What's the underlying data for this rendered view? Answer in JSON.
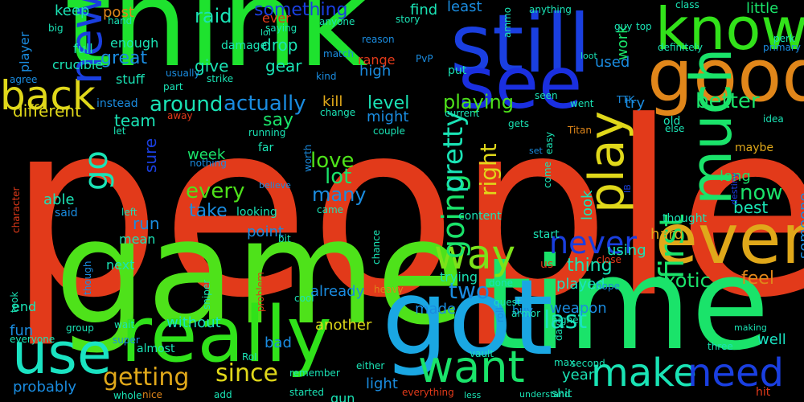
{
  "background": "#000000",
  "words": [
    {
      "text": "people",
      "color": "#e23a1a",
      "rot": false
    },
    {
      "text": "game",
      "color": "#4ee21a",
      "rot": false
    },
    {
      "text": "time",
      "color": "#1ae36a",
      "rot": false
    },
    {
      "text": "think",
      "color": "#1ee22e",
      "rot": false
    },
    {
      "text": "got",
      "color": "#1aa7e3",
      "rot": false
    },
    {
      "text": "still",
      "color": "#1a3fe0",
      "rot": false
    },
    {
      "text": "really",
      "color": "#30e21a",
      "rot": false
    },
    {
      "text": "good",
      "color": "#e0861a",
      "rot": false
    },
    {
      "text": "know",
      "color": "#32e21a",
      "rot": false
    },
    {
      "text": "see",
      "color": "#1a2fe0",
      "rot": false
    },
    {
      "text": "even",
      "color": "#e0a81a",
      "rot": false
    },
    {
      "text": "use",
      "color": "#1ae3c2",
      "rot": false
    },
    {
      "text": "want",
      "color": "#1ae36a",
      "rot": false
    },
    {
      "text": "make",
      "color": "#1ae3b5",
      "rot": false
    },
    {
      "text": "need",
      "color": "#1a3fe0",
      "rot": false
    },
    {
      "text": "much",
      "color": "#1ae36a",
      "rot": true
    },
    {
      "text": "play",
      "color": "#e0d81a",
      "rot": true
    },
    {
      "text": "way",
      "color": "#7ce21a",
      "rot": false
    },
    {
      "text": "back",
      "color": "#e0d81a",
      "rot": false
    },
    {
      "text": "new",
      "color": "#1a3fe0",
      "rot": true
    },
    {
      "text": "go",
      "color": "#1ae3b5",
      "rot": true
    },
    {
      "text": "first",
      "color": "#1ae36a",
      "rot": true
    },
    {
      "text": "never",
      "color": "#1a3fe0",
      "rot": false
    },
    {
      "text": "going",
      "color": "#1ae36a",
      "rot": true
    },
    {
      "text": "pretty",
      "color": "#1ae3b5",
      "rot": true
    },
    {
      "text": "getting",
      "color": "#e0a81a",
      "rot": false
    },
    {
      "text": "since",
      "color": "#e0d81a",
      "rot": false
    },
    {
      "text": "last",
      "color": "#1ae3c2",
      "rot": false
    },
    {
      "text": "every",
      "color": "#4ee21a",
      "rot": false
    },
    {
      "text": "actually",
      "color": "#1a8ce0",
      "rot": false
    },
    {
      "text": "around",
      "color": "#1ae3b5",
      "rot": false
    },
    {
      "text": "better",
      "color": "#1ae36a",
      "rot": false
    },
    {
      "text": "exotic",
      "color": "#1ae36a",
      "rot": false
    },
    {
      "text": "many",
      "color": "#1a8ce0",
      "rot": false
    },
    {
      "text": "love",
      "color": "#4ee21a",
      "rot": false
    },
    {
      "text": "thing",
      "color": "#1ae3b5",
      "rot": false
    },
    {
      "text": "now",
      "color": "#1ae36a",
      "rot": false
    },
    {
      "text": "lot",
      "color": "#1ae36a",
      "rot": false
    },
    {
      "text": "two",
      "color": "#1a8ce0",
      "rot": false
    },
    {
      "text": "take",
      "color": "#1a8ce0",
      "rot": false
    },
    {
      "text": "feel",
      "color": "#e0861a",
      "rot": false
    },
    {
      "text": "right",
      "color": "#e0d81a",
      "rot": true
    },
    {
      "text": "playing",
      "color": "#4ee21a",
      "rot": false
    },
    {
      "text": "raid",
      "color": "#1ae3b5",
      "rot": false
    },
    {
      "text": "something",
      "color": "#1a3fe0",
      "rot": false
    },
    {
      "text": "level",
      "color": "#1ae3b5",
      "rot": false
    },
    {
      "text": "say",
      "color": "#1ae36a",
      "rot": false
    },
    {
      "text": "team",
      "color": "#1ae3b5",
      "rot": false
    },
    {
      "text": "gear",
      "color": "#1ae3b5",
      "rot": false
    },
    {
      "text": "drop",
      "color": "#1ae3b5",
      "rot": false
    },
    {
      "text": "give",
      "color": "#1ae3b5",
      "rot": false
    },
    {
      "text": "great",
      "color": "#1a8ce0",
      "rot": false
    },
    {
      "text": "different",
      "color": "#e0d81a",
      "rot": false
    },
    {
      "text": "kill",
      "color": "#e0a81a",
      "rot": false
    },
    {
      "text": "run",
      "color": "#1a8ce0",
      "rot": false
    },
    {
      "text": "sure",
      "color": "#1a3fe0",
      "rot": true
    },
    {
      "text": "week",
      "color": "#1ae36a",
      "rot": false
    },
    {
      "text": "point",
      "color": "#1a8ce0",
      "rot": false
    },
    {
      "text": "able",
      "color": "#1ae3b5",
      "rot": false
    },
    {
      "text": "best",
      "color": "#1ae3b5",
      "rot": false
    },
    {
      "text": "look",
      "color": "#1ae3b5",
      "rot": true
    },
    {
      "text": "using",
      "color": "#1ae3b5",
      "rot": false
    },
    {
      "text": "hard",
      "color": "#e0a81a",
      "rot": false
    },
    {
      "text": "played",
      "color": "#1ae3c2",
      "rot": false
    },
    {
      "text": "already",
      "color": "#1a8ce0",
      "rot": false
    },
    {
      "text": "made",
      "color": "#1a8ce0",
      "rot": false
    },
    {
      "text": "weapon",
      "color": "#1a8ce0",
      "rot": false
    },
    {
      "text": "year",
      "color": "#1ae3b5",
      "rot": false
    },
    {
      "text": "well",
      "color": "#1ae3c2",
      "rot": false
    },
    {
      "text": "bad",
      "color": "#1a8ce0",
      "rot": false
    },
    {
      "text": "light",
      "color": "#1a8ce0",
      "rot": false
    },
    {
      "text": "another",
      "color": "#e0d81a",
      "rot": false
    },
    {
      "text": "without",
      "color": "#1ae3c2",
      "rot": false
    },
    {
      "text": "fun",
      "color": "#1a8ce0",
      "rot": false
    },
    {
      "text": "probably",
      "color": "#1a8ce0",
      "rot": false
    },
    {
      "text": "long",
      "color": "#1ae36a",
      "rot": false
    },
    {
      "text": "someone",
      "color": "#1a8ce0",
      "rot": true
    },
    {
      "text": "try",
      "color": "#1a8ce0",
      "rot": false
    },
    {
      "text": "used",
      "color": "#1a8ce0",
      "rot": false
    },
    {
      "text": "work",
      "color": "#1ae36a",
      "rot": true
    },
    {
      "text": "little",
      "color": "#1ae36a",
      "rot": false
    },
    {
      "text": "find",
      "color": "#1ae3b5",
      "rot": false
    },
    {
      "text": "least",
      "color": "#1a8ce0",
      "rot": false
    },
    {
      "text": "keep",
      "color": "#1ae3b5",
      "rot": false
    },
    {
      "text": "post",
      "color": "#e0861a",
      "rot": false
    },
    {
      "text": "ever",
      "color": "#e23a1a",
      "rot": false
    },
    {
      "text": "might",
      "color": "#1a8ce0",
      "rot": false
    },
    {
      "text": "gun",
      "color": "#1ae3b5",
      "rot": false
    },
    {
      "text": "trying",
      "color": "#1ae3b5",
      "rot": false
    },
    {
      "text": "full",
      "color": "#1ae3b5",
      "rot": false
    },
    {
      "text": "enough",
      "color": "#1ae3b5",
      "rot": false
    },
    {
      "text": "stuff",
      "color": "#1ae3b5",
      "rot": false
    },
    {
      "text": "player",
      "color": "#1a8ce0",
      "rot": true
    },
    {
      "text": "range",
      "color": "#e23a1a",
      "rot": false
    },
    {
      "text": "crucible",
      "color": "#1ae3b5",
      "rot": false
    },
    {
      "text": "next",
      "color": "#1ae3b5",
      "rot": false
    },
    {
      "text": "mean",
      "color": "#1ae3b5",
      "rot": false
    },
    {
      "text": "said",
      "color": "#1a8ce0",
      "rot": false
    },
    {
      "text": "end",
      "color": "#1ae3b5",
      "rot": false
    },
    {
      "text": "thought",
      "color": "#1ae3b5",
      "rot": false
    },
    {
      "text": "old",
      "color": "#1ae3b5",
      "rot": false
    },
    {
      "text": "us",
      "color": "#e23a1a",
      "rot": false
    },
    {
      "text": "high",
      "color": "#1a8ce0",
      "rot": false
    },
    {
      "text": "put",
      "color": "#1ae3b5",
      "rot": false
    },
    {
      "text": "far",
      "color": "#1ae3b5",
      "rot": false
    },
    {
      "text": "maybe",
      "color": "#e0a81a",
      "rot": false
    },
    {
      "text": "buy",
      "color": "#1a8ce0",
      "rot": false
    },
    {
      "text": "content",
      "color": "#1ae3b5",
      "rot": false
    },
    {
      "text": "looking",
      "color": "#1ae3b5",
      "rot": false
    },
    {
      "text": "start",
      "color": "#1ae3b5",
      "rot": false
    },
    {
      "text": "shit",
      "color": "#1ae3b5",
      "rot": false
    },
    {
      "text": "hit",
      "color": "#e23a1a",
      "rot": false
    },
    {
      "text": "almost",
      "color": "#1ae3b5",
      "rot": false
    },
    {
      "text": "damage",
      "color": "#1ae3b5",
      "rot": false
    },
    {
      "text": "instead",
      "color": "#1a8ce0",
      "rot": false
    },
    {
      "text": "agree",
      "color": "#1a8ce0",
      "rot": false
    },
    {
      "text": "usually",
      "color": "#1a8ce0",
      "rot": false
    },
    {
      "text": "strike",
      "color": "#1ae3b5",
      "rot": false
    },
    {
      "text": "anyone",
      "color": "#1ae3b5",
      "rot": false
    },
    {
      "text": "saying",
      "color": "#1ae3b5",
      "rot": false
    },
    {
      "text": "hand",
      "color": "#1ae3b5",
      "rot": false
    },
    {
      "text": "big",
      "color": "#1ae3b5",
      "rot": false
    },
    {
      "text": "reason",
      "color": "#1a8ce0",
      "rot": false
    },
    {
      "text": "story",
      "color": "#1ae3b5",
      "rot": false
    },
    {
      "text": "anything",
      "color": "#1ae3b5",
      "rot": false
    },
    {
      "text": "class",
      "color": "#1ae3b5",
      "rot": false
    },
    {
      "text": "perk",
      "color": "#1ae3b5",
      "rot": false
    },
    {
      "text": "primary",
      "color": "#1a8ce0",
      "rot": false
    },
    {
      "text": "definitely",
      "color": "#1ae3b5",
      "rot": false
    },
    {
      "text": "top",
      "color": "#1ae3b5",
      "rot": false
    },
    {
      "text": "guy",
      "color": "#1ae3b5",
      "rot": false
    },
    {
      "text": "loot",
      "color": "#1ae3b5",
      "rot": false
    },
    {
      "text": "ammo",
      "color": "#1ae3b5",
      "rot": true
    },
    {
      "text": "PvP",
      "color": "#1a8ce0",
      "rot": false
    },
    {
      "text": "match",
      "color": "#1a8ce0",
      "rot": false
    },
    {
      "text": "kind",
      "color": "#1a8ce0",
      "rot": false
    },
    {
      "text": "part",
      "color": "#1ae3b5",
      "rot": false
    },
    {
      "text": "away",
      "color": "#e23a1a",
      "rot": false
    },
    {
      "text": "let",
      "color": "#1ae3b5",
      "rot": false
    },
    {
      "text": "running",
      "color": "#1ae3b5",
      "rot": false
    },
    {
      "text": "nothing",
      "color": "#1a8ce0",
      "rot": false
    },
    {
      "text": "believe",
      "color": "#1a8ce0",
      "rot": false
    },
    {
      "text": "worth",
      "color": "#1a8ce0",
      "rot": true
    },
    {
      "text": "came",
      "color": "#1ae3b5",
      "rot": false
    },
    {
      "text": "change",
      "color": "#1ae3b5",
      "rot": false
    },
    {
      "text": "couple",
      "color": "#1ae3b5",
      "rot": false
    },
    {
      "text": "current",
      "color": "#1ae3b5",
      "rot": false
    },
    {
      "text": "seen",
      "color": "#1ae3b5",
      "rot": false
    },
    {
      "text": "gets",
      "color": "#1ae3b5",
      "rot": false
    },
    {
      "text": "set",
      "color": "#1a8ce0",
      "rot": false
    },
    {
      "text": "easy",
      "color": "#1ae3b5",
      "rot": true
    },
    {
      "text": "Titan",
      "color": "#e0861a",
      "rot": false
    },
    {
      "text": "went",
      "color": "#1ae3b5",
      "rot": false
    },
    {
      "text": "TTK",
      "color": "#1a8ce0",
      "rot": false
    },
    {
      "text": "else",
      "color": "#1ae3b5",
      "rot": false
    },
    {
      "text": "idea",
      "color": "#1ae3b5",
      "rot": false
    },
    {
      "text": "rank",
      "color": "#1ae3b5",
      "rot": false
    },
    {
      "text": "character",
      "color": "#e23a1a",
      "rot": true
    },
    {
      "text": "destiny",
      "color": "#1a3fe0",
      "rot": true
    },
    {
      "text": "IB",
      "color": "#1a3fe0",
      "rot": true
    },
    {
      "text": "come",
      "color": "#1ae3b5",
      "rot": true
    },
    {
      "text": "close",
      "color": "#e23a1a",
      "rot": false
    },
    {
      "text": "bit",
      "color": "#1ae3b5",
      "rot": false
    },
    {
      "text": "left",
      "color": "#1ae3b5",
      "rot": false
    },
    {
      "text": "cool",
      "color": "#1ae3b5",
      "rot": false
    },
    {
      "text": "chance",
      "color": "#1ae3b5",
      "rot": true
    },
    {
      "text": "sniper",
      "color": "#1ae3b5",
      "rot": true
    },
    {
      "text": "problem",
      "color": "#e23a1a",
      "rot": true
    },
    {
      "text": "though",
      "color": "#1a8ce0",
      "rot": true
    },
    {
      "text": "done",
      "color": "#1ae3b5",
      "rot": false
    },
    {
      "text": "hope",
      "color": "#1a8ce0",
      "rot": false
    },
    {
      "text": "heavy",
      "color": "#e0861a",
      "rot": false
    },
    {
      "text": "quest",
      "color": "#1ae3b5",
      "rot": false
    },
    {
      "text": "armor",
      "color": "#1ae3b5",
      "rot": false
    },
    {
      "text": "higher",
      "color": "#1ae3b5",
      "rot": false
    },
    {
      "text": "making",
      "color": "#1ae3b5",
      "rot": false
    },
    {
      "text": "took",
      "color": "#1ae3b5",
      "rot": true
    },
    {
      "text": "group",
      "color": "#1ae3b5",
      "rot": false
    },
    {
      "text": "wait",
      "color": "#1ae3b5",
      "rot": false
    },
    {
      "text": "everyone",
      "color": "#1ae3b5",
      "rot": false
    },
    {
      "text": "super",
      "color": "#1a8ce0",
      "rot": false
    },
    {
      "text": "RoI",
      "color": "#1ae3b5",
      "rot": false
    },
    {
      "text": "roll",
      "color": "#1a8ce0",
      "rot": true
    },
    {
      "text": "vault",
      "color": "#1ae3b5",
      "rot": false
    },
    {
      "text": "day",
      "color": "#1ae3b5",
      "rot": true
    },
    {
      "text": "second",
      "color": "#1ae3b5",
      "rot": false
    },
    {
      "text": "max",
      "color": "#1ae3b5",
      "rot": false
    },
    {
      "text": "three",
      "color": "#1ae3b5",
      "rot": false
    },
    {
      "text": "remember",
      "color": "#1ae3b5",
      "rot": false
    },
    {
      "text": "either",
      "color": "#1ae3b5",
      "rot": false
    },
    {
      "text": "whole",
      "color": "#1ae3b5",
      "rot": false
    },
    {
      "text": "nice",
      "color": "#e0861a",
      "rot": false
    },
    {
      "text": "add",
      "color": "#1ae3b5",
      "rot": false
    },
    {
      "text": "started",
      "color": "#1ae3b5",
      "rot": false
    },
    {
      "text": "everything",
      "color": "#e23a1a",
      "rot": false
    },
    {
      "text": "less",
      "color": "#1ae3b5",
      "rot": false
    },
    {
      "text": "understand",
      "color": "#1ae3b5",
      "rot": false
    },
    {
      "text": "lol",
      "color": "#1ae3b5",
      "rot": false
    },
    {
      "text": "shot",
      "color": "#1ae3b5",
      "rot": true
    }
  ]
}
